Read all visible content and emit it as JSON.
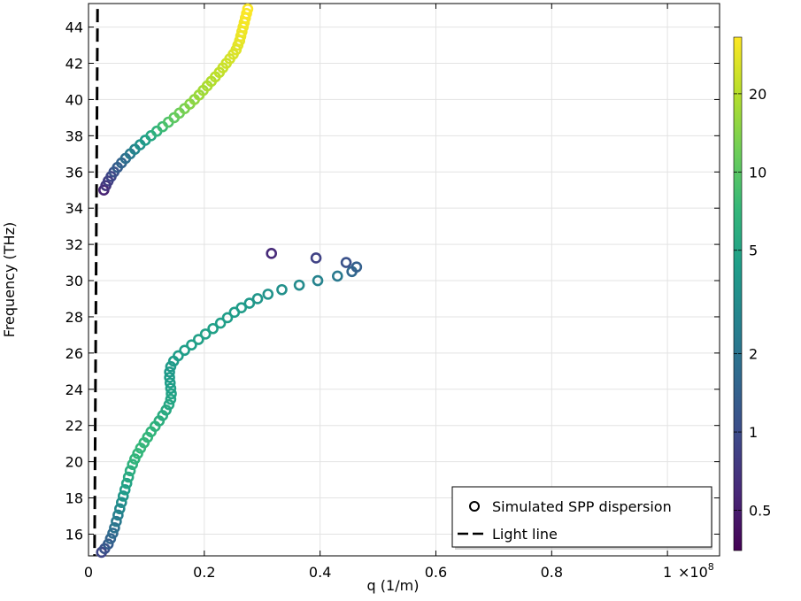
{
  "chart_data": {
    "type": "scatter",
    "title": "",
    "xlabel": "q (1/m)",
    "ylabel": "Frequency (THz)",
    "x_multiplier_label": "×10",
    "x_multiplier_exp": "8",
    "xlim": [
      0,
      1.09
    ],
    "ylim": [
      14.8,
      45.3
    ],
    "x_ticks": [
      0,
      0.2,
      0.4,
      0.6,
      0.8,
      1
    ],
    "x_tick_labels": [
      "0",
      "0.2",
      "0.4",
      "0.6",
      "0.8",
      "1"
    ],
    "y_ticks": [
      16,
      18,
      20,
      22,
      24,
      26,
      28,
      30,
      32,
      34,
      36,
      38,
      40,
      42,
      44
    ],
    "y_tick_labels": [
      "16",
      "18",
      "20",
      "22",
      "24",
      "26",
      "28",
      "30",
      "32",
      "34",
      "36",
      "38",
      "40",
      "42",
      "44"
    ],
    "grid": true,
    "legend": {
      "position": "bottom-right",
      "entries": [
        "Simulated SPP dispersion",
        "Light line"
      ]
    },
    "colorbar": {
      "scale": "log",
      "range": [
        0.35,
        33
      ],
      "ticks": [
        0.5,
        1,
        2,
        5,
        10,
        20
      ],
      "tick_labels": [
        "0.5",
        "1",
        "2",
        "5",
        "10",
        "20"
      ],
      "colormap": [
        "#440154",
        "#482878",
        "#3e4a89",
        "#31688e",
        "#26828e",
        "#1f9e89",
        "#35b779",
        "#6ece58",
        "#b5de2b",
        "#fde725"
      ]
    },
    "light_line": {
      "x": [
        0.0156,
        0.0104
      ],
      "y": [
        45,
        14.8
      ]
    },
    "series": [
      {
        "name": "Simulated SPP dispersion",
        "points": [
          [
            0.0225,
            15.0,
            0.9
          ],
          [
            0.028,
            15.2,
            1.1
          ],
          [
            0.034,
            15.45,
            1.3
          ],
          [
            0.038,
            15.75,
            1.5
          ],
          [
            0.042,
            16.05,
            1.7
          ],
          [
            0.045,
            16.35,
            1.9
          ],
          [
            0.048,
            16.7,
            2.2
          ],
          [
            0.051,
            17.05,
            2.5
          ],
          [
            0.054,
            17.4,
            2.9
          ],
          [
            0.057,
            17.75,
            3.3
          ],
          [
            0.06,
            18.1,
            3.8
          ],
          [
            0.063,
            18.45,
            4.3
          ],
          [
            0.066,
            18.8,
            4.9
          ],
          [
            0.069,
            19.15,
            5.4
          ],
          [
            0.072,
            19.5,
            5.9
          ],
          [
            0.076,
            19.85,
            6.4
          ],
          [
            0.08,
            20.15,
            6.8
          ],
          [
            0.085,
            20.45,
            7.0
          ],
          [
            0.09,
            20.75,
            7.1
          ],
          [
            0.096,
            21.05,
            7.1
          ],
          [
            0.102,
            21.35,
            7.0
          ],
          [
            0.108,
            21.65,
            6.8
          ],
          [
            0.115,
            21.95,
            6.5
          ],
          [
            0.122,
            22.25,
            6.1
          ],
          [
            0.128,
            22.55,
            5.8
          ],
          [
            0.134,
            22.85,
            5.5
          ],
          [
            0.139,
            23.15,
            5.3
          ],
          [
            0.142,
            23.45,
            5.0
          ],
          [
            0.143,
            23.75,
            4.8
          ],
          [
            0.142,
            24.05,
            4.6
          ],
          [
            0.141,
            24.35,
            4.4
          ],
          [
            0.14,
            24.65,
            4.2
          ],
          [
            0.14,
            24.95,
            4.1
          ],
          [
            0.142,
            25.25,
            4.1
          ],
          [
            0.147,
            25.55,
            4.2
          ],
          [
            0.155,
            25.85,
            4.3
          ],
          [
            0.166,
            26.15,
            4.4
          ],
          [
            0.178,
            26.45,
            4.5
          ],
          [
            0.19,
            26.75,
            4.6
          ],
          [
            0.202,
            27.05,
            4.6
          ],
          [
            0.215,
            27.35,
            4.6
          ],
          [
            0.228,
            27.65,
            4.5
          ],
          [
            0.24,
            27.95,
            4.4
          ],
          [
            0.252,
            28.25,
            4.3
          ],
          [
            0.264,
            28.5,
            4.2
          ],
          [
            0.278,
            28.75,
            4.0
          ],
          [
            0.292,
            29.0,
            3.8
          ],
          [
            0.31,
            29.25,
            3.6
          ],
          [
            0.334,
            29.5,
            3.4
          ],
          [
            0.364,
            29.75,
            3.1
          ],
          [
            0.396,
            30.0,
            2.7
          ],
          [
            0.43,
            30.25,
            2.2
          ],
          [
            0.455,
            30.5,
            1.6
          ],
          [
            0.463,
            30.75,
            1.4
          ],
          [
            0.445,
            31.0,
            1.1
          ],
          [
            0.393,
            31.25,
            0.85
          ],
          [
            0.316,
            31.5,
            0.6
          ],
          [
            0.0265,
            35.0,
            0.55
          ],
          [
            0.03,
            35.25,
            0.7
          ],
          [
            0.034,
            35.5,
            0.8
          ],
          [
            0.039,
            35.75,
            0.9
          ],
          [
            0.044,
            36.0,
            1.1
          ],
          [
            0.05,
            36.25,
            1.3
          ],
          [
            0.057,
            36.5,
            1.5
          ],
          [
            0.064,
            36.75,
            1.8
          ],
          [
            0.072,
            37.0,
            2.2
          ],
          [
            0.08,
            37.25,
            2.8
          ],
          [
            0.089,
            37.5,
            3.5
          ],
          [
            0.098,
            37.75,
            4.3
          ],
          [
            0.108,
            38.0,
            5.3
          ],
          [
            0.118,
            38.25,
            6.5
          ],
          [
            0.128,
            38.5,
            7.8
          ],
          [
            0.138,
            38.75,
            9.2
          ],
          [
            0.148,
            39.0,
            10.5
          ],
          [
            0.157,
            39.25,
            11.8
          ],
          [
            0.166,
            39.5,
            13.0
          ],
          [
            0.175,
            39.75,
            14.2
          ],
          [
            0.183,
            40.0,
            15.3
          ],
          [
            0.191,
            40.25,
            16.4
          ],
          [
            0.198,
            40.5,
            17.4
          ],
          [
            0.205,
            40.75,
            18.4
          ],
          [
            0.212,
            41.0,
            19.4
          ],
          [
            0.219,
            41.25,
            20.4
          ],
          [
            0.226,
            41.5,
            21.4
          ],
          [
            0.232,
            41.75,
            22.4
          ],
          [
            0.238,
            42.0,
            23.4
          ],
          [
            0.244,
            42.25,
            24.4
          ],
          [
            0.25,
            42.5,
            25.4
          ],
          [
            0.255,
            42.75,
            26.4
          ],
          [
            0.258,
            43.0,
            27.2
          ],
          [
            0.261,
            43.25,
            28.0
          ],
          [
            0.263,
            43.5,
            28.8
          ],
          [
            0.265,
            43.75,
            29.5
          ],
          [
            0.267,
            44.0,
            30.2
          ],
          [
            0.269,
            44.25,
            30.8
          ],
          [
            0.271,
            44.5,
            31.4
          ],
          [
            0.273,
            44.75,
            32.0
          ],
          [
            0.275,
            45.0,
            32.5
          ]
        ]
      }
    ]
  }
}
